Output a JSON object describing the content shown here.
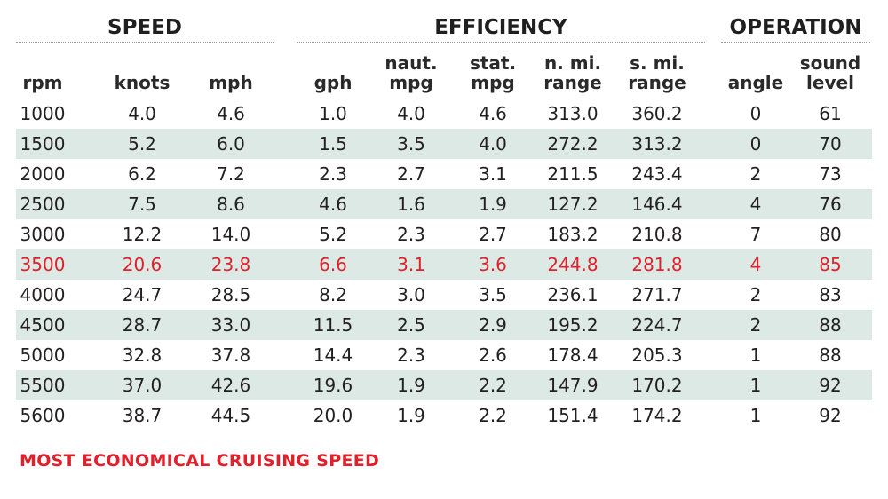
{
  "groups": {
    "speed": "SPEED",
    "efficiency": "EFFICIENCY",
    "operation": "OPERATION"
  },
  "columns": [
    {
      "key": "rpm",
      "line1": "",
      "line2": "rpm"
    },
    {
      "key": "knots",
      "line1": "",
      "line2": "knots"
    },
    {
      "key": "mph",
      "line1": "",
      "line2": "mph"
    },
    {
      "key": "gph",
      "line1": "",
      "line2": "gph"
    },
    {
      "key": "naut_mpg",
      "line1": "naut.",
      "line2": "mpg"
    },
    {
      "key": "stat_mpg",
      "line1": "stat.",
      "line2": "mpg"
    },
    {
      "key": "n_mi_range",
      "line1": "n. mi.",
      "line2": "range"
    },
    {
      "key": "s_mi_range",
      "line1": "s. mi.",
      "line2": "range"
    },
    {
      "key": "angle",
      "line1": "",
      "line2": "angle"
    },
    {
      "key": "sound_level",
      "line1": "sound",
      "line2": "level"
    }
  ],
  "rows": [
    [
      "1000",
      "4.0",
      "4.6",
      "1.0",
      "4.0",
      "4.6",
      "313.0",
      "360.2",
      "0",
      "61"
    ],
    [
      "1500",
      "5.2",
      "6.0",
      "1.5",
      "3.5",
      "4.0",
      "272.2",
      "313.2",
      "0",
      "70"
    ],
    [
      "2000",
      "6.2",
      "7.2",
      "2.3",
      "2.7",
      "3.1",
      "211.5",
      "243.4",
      "2",
      "73"
    ],
    [
      "2500",
      "7.5",
      "8.6",
      "4.6",
      "1.6",
      "1.9",
      "127.2",
      "146.4",
      "4",
      "76"
    ],
    [
      "3000",
      "12.2",
      "14.0",
      "5.2",
      "2.3",
      "2.7",
      "183.2",
      "210.8",
      "7",
      "80"
    ],
    [
      "3500",
      "20.6",
      "23.8",
      "6.6",
      "3.1",
      "3.6",
      "244.8",
      "281.8",
      "4",
      "85"
    ],
    [
      "4000",
      "24.7",
      "28.5",
      "8.2",
      "3.0",
      "3.5",
      "236.1",
      "271.7",
      "2",
      "83"
    ],
    [
      "4500",
      "28.7",
      "33.0",
      "11.5",
      "2.5",
      "2.9",
      "195.2",
      "224.7",
      "2",
      "88"
    ],
    [
      "5000",
      "32.8",
      "37.8",
      "14.4",
      "2.3",
      "2.6",
      "178.4",
      "205.3",
      "1",
      "88"
    ],
    [
      "5500",
      "37.0",
      "42.6",
      "19.6",
      "1.9",
      "2.2",
      "147.9",
      "170.2",
      "1",
      "92"
    ],
    [
      "5600",
      "38.7",
      "44.5",
      "20.0",
      "1.9",
      "2.2",
      "151.4",
      "174.2",
      "1",
      "92"
    ]
  ],
  "highlight_row": 5,
  "colors": {
    "highlight": "#e0202b",
    "shade": "#dde9e4",
    "text": "#231f20"
  },
  "footnote": "MOST ECONOMICAL CRUISING SPEED"
}
